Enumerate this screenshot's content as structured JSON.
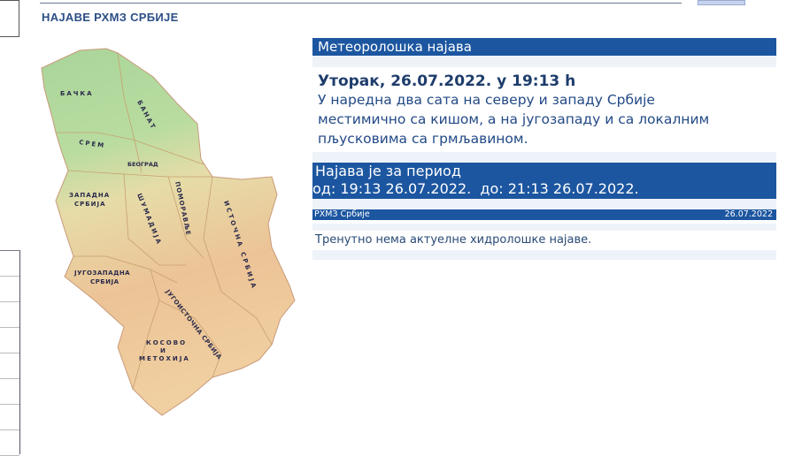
{
  "header": {
    "title": "НАЈАВЕ РХМЗ СРБИЈЕ"
  },
  "map": {
    "regions": {
      "backa": "БАЧКА",
      "banat": "БАНАТ",
      "srem": "СРЕМ",
      "beograd": "БЕОГРАД",
      "zapadna_1": "ЗАПАДНА",
      "zapadna_2": "СРБИЈА",
      "sumadija": "ШУМАДИЈА",
      "pomoravlje": "ПОМОРАВЉЕ",
      "istocna": "ИСТОЧНА СРБИЈА",
      "jugozapadna_1": "ЈУГОЗАПАДНА",
      "jugozapadna_2": "СРБИЈА",
      "jugoistocna": "ЈУГОИСТОЧНА СРБИЈА",
      "kosovo_1": "КОСОВО",
      "kosovo_2": "И",
      "kosovo_3": "МЕТОХИЈА"
    }
  },
  "forecast": {
    "heading": "Метеоролошка најава",
    "date": "Уторак, 26.07.2022. у 19:13 h",
    "text_lines": [
      "У наредна два сата на северу и западу Србије",
      "местимично са кишом, а на југозападу и са локалним",
      "пљусковима са грмљавином."
    ],
    "period_label": "Најава је за период",
    "period_range": "од: 19:13 26.07.2022.  до: 21:13 26.07.2022.",
    "source": "РХМЗ Србије",
    "source_date": "26.07.2022",
    "hydro": "Тренутно нема актуелне хидролошке најаве."
  },
  "colors": {
    "accent": "#1c56a0",
    "title": "#2b4f86"
  }
}
